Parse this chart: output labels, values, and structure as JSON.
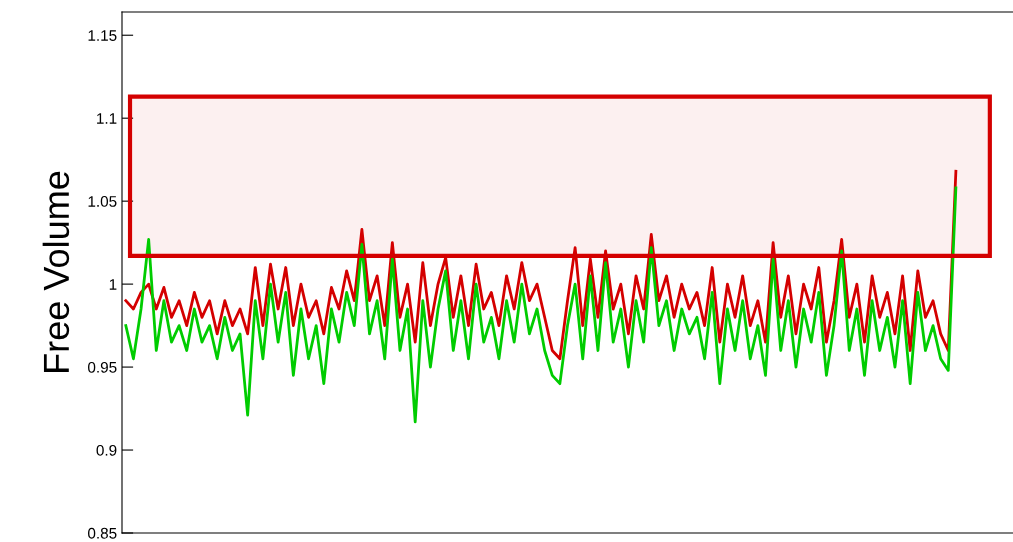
{
  "chart_data": {
    "type": "line",
    "ylabel": "Free Volume",
    "categories": [
      null,
      null,
      null,
      null,
      null,
      null,
      null,
      null,
      null,
      null,
      null,
      null,
      null,
      null,
      null,
      null,
      null,
      null,
      null,
      null,
      null,
      null,
      null,
      null,
      null,
      null,
      null,
      null,
      null,
      null,
      null,
      null,
      null,
      null,
      null,
      null,
      null,
      null,
      null,
      null,
      null,
      null,
      null,
      null,
      null,
      null,
      null,
      null,
      null,
      null,
      null,
      null,
      null,
      null,
      null,
      null,
      null,
      null,
      null,
      null,
      null,
      null,
      null,
      null,
      null,
      null,
      null,
      null,
      null,
      null,
      null,
      null,
      null,
      null,
      null,
      null,
      null,
      null,
      null,
      null,
      null,
      null,
      null,
      null,
      null,
      null,
      null,
      null,
      null,
      null,
      null,
      null,
      null,
      null,
      null,
      null,
      null,
      null,
      null,
      null,
      null,
      null,
      null,
      null,
      null,
      null,
      null,
      null,
      null,
      null,
      null,
      null,
      null,
      null,
      null,
      null,
      null
    ],
    "series": [
      {
        "color": "#d40000",
        "values": [
          0.99,
          0.985,
          0.995,
          1.0,
          0.985,
          0.998,
          0.98,
          0.99,
          0.975,
          0.995,
          0.98,
          0.99,
          0.97,
          0.99,
          0.975,
          0.985,
          0.97,
          1.01,
          0.975,
          1.012,
          0.985,
          1.01,
          0.975,
          1.0,
          0.98,
          0.99,
          0.97,
          0.998,
          0.985,
          1.008,
          0.99,
          1.033,
          0.99,
          1.005,
          0.975,
          1.025,
          0.98,
          1.0,
          0.965,
          1.013,
          0.975,
          1.0,
          1.016,
          0.98,
          1.005,
          0.975,
          1.012,
          0.985,
          0.995,
          0.975,
          1.005,
          0.985,
          1.013,
          0.99,
          1.0,
          0.98,
          0.96,
          0.955,
          0.99,
          1.022,
          0.975,
          1.015,
          0.98,
          1.02,
          0.985,
          1.0,
          0.97,
          1.005,
          0.985,
          1.03,
          0.99,
          1.005,
          0.98,
          1.0,
          0.985,
          0.995,
          0.975,
          1.01,
          0.965,
          1.0,
          0.98,
          1.005,
          0.975,
          0.99,
          0.965,
          1.025,
          0.98,
          1.005,
          0.97,
          1.0,
          0.985,
          1.01,
          0.965,
          0.99,
          1.027,
          0.98,
          1.0,
          0.965,
          1.005,
          0.98,
          0.995,
          0.97,
          1.005,
          0.96,
          1.008,
          0.98,
          0.99,
          0.97,
          0.96,
          1.068,
          null,
          null,
          null,
          null,
          null,
          null,
          null
        ]
      },
      {
        "color": "#00cc00",
        "values": [
          0.975,
          0.955,
          0.985,
          1.027,
          0.96,
          0.99,
          0.965,
          0.975,
          0.96,
          0.985,
          0.965,
          0.975,
          0.955,
          0.98,
          0.96,
          0.97,
          0.921,
          0.99,
          0.955,
          1.0,
          0.965,
          0.995,
          0.945,
          0.985,
          0.955,
          0.975,
          0.94,
          0.985,
          0.965,
          0.995,
          0.975,
          1.024,
          0.97,
          0.99,
          0.955,
          1.015,
          0.96,
          0.985,
          0.917,
          0.99,
          0.95,
          0.985,
          1.008,
          0.96,
          0.99,
          0.955,
          1.0,
          0.965,
          0.98,
          0.955,
          0.99,
          0.965,
          1.0,
          0.97,
          0.985,
          0.96,
          0.945,
          0.94,
          0.975,
          1.0,
          0.955,
          1.005,
          0.96,
          1.013,
          0.965,
          0.985,
          0.95,
          0.99,
          0.965,
          1.022,
          0.975,
          0.99,
          0.96,
          0.985,
          0.97,
          0.98,
          0.955,
          0.995,
          0.94,
          0.985,
          0.96,
          0.99,
          0.955,
          0.975,
          0.945,
          1.015,
          0.96,
          0.99,
          0.95,
          0.985,
          0.965,
          0.995,
          0.945,
          0.975,
          1.02,
          0.96,
          0.985,
          0.945,
          0.99,
          0.96,
          0.98,
          0.95,
          0.99,
          0.94,
          0.995,
          0.96,
          0.975,
          0.955,
          0.948,
          1.058,
          null,
          null,
          null,
          null,
          null,
          null,
          null
        ]
      }
    ],
    "ylim": [
      0.85,
      1.164
    ],
    "yticks": [
      0.85,
      0.9,
      0.95,
      1,
      1.05,
      1.1,
      1.15
    ],
    "tick_labels": "y",
    "bands": [
      {
        "axis": "y",
        "from": 1.017,
        "to": 1.113,
        "color": "#d40000"
      }
    ]
  }
}
